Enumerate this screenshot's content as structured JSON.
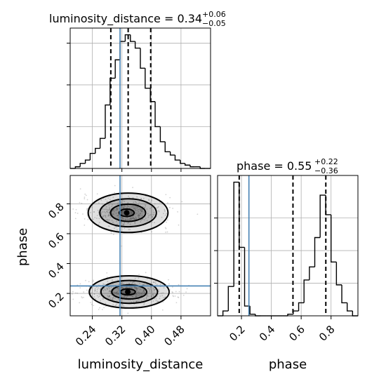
{
  "chart_data": {
    "type": "corner",
    "parameters": [
      "luminosity_distance",
      "phase"
    ],
    "truths": {
      "luminosity_distance": 0.315,
      "phase": 0.25
    },
    "panels": {
      "luminosity_distance_hist": {
        "type": "histogram",
        "title_prefix": "luminosity_distance = 0.34",
        "plus_err": "+0.06",
        "minus_err": "−0.05",
        "quantiles": [
          0.29,
          0.337,
          0.398
        ],
        "xlim": [
          0.18,
          0.56
        ],
        "bin_edges": [
          0.18,
          0.194,
          0.207,
          0.221,
          0.234,
          0.248,
          0.261,
          0.275,
          0.288,
          0.302,
          0.315,
          0.329,
          0.343,
          0.356,
          0.37,
          0.383,
          0.397,
          0.41,
          0.424,
          0.437,
          0.451,
          0.464,
          0.478,
          0.491,
          0.505,
          0.518,
          0.532,
          0.545,
          0.56
        ],
        "counts": [
          0,
          1,
          3,
          5,
          9,
          12,
          18,
          38,
          54,
          65,
          76,
          80,
          76,
          72,
          60,
          48,
          40,
          25,
          16,
          10,
          8,
          5,
          3,
          2,
          1,
          1,
          0,
          0
        ],
        "grid": true
      },
      "phase_hist": {
        "type": "histogram",
        "title_prefix": "phase = 0.55",
        "plus_err": "+0.22",
        "minus_err": "−0.36",
        "quantiles": [
          0.185,
          0.545,
          0.765
        ],
        "xlim": [
          0.04,
          0.98
        ],
        "bin_edges": [
          0.04,
          0.076,
          0.112,
          0.149,
          0.185,
          0.221,
          0.257,
          0.293,
          0.329,
          0.366,
          0.402,
          0.438,
          0.474,
          0.51,
          0.547,
          0.583,
          0.619,
          0.655,
          0.691,
          0.727,
          0.764,
          0.8,
          0.836,
          0.872,
          0.908,
          0.944,
          0.98
        ],
        "counts": [
          0,
          3,
          18,
          82,
          42,
          6,
          1,
          0,
          0,
          0,
          0,
          0,
          0,
          1,
          3,
          8,
          22,
          30,
          48,
          74,
          62,
          33,
          19,
          8,
          3,
          0
        ],
        "xticks": [
          "0.2",
          "0.4",
          "0.6",
          "0.8"
        ],
        "xtick_values": [
          0.2,
          0.4,
          0.6,
          0.8
        ],
        "xlabel": "phase",
        "grid": true
      },
      "joint": {
        "type": "contour_2d",
        "xlim": [
          0.18,
          0.56
        ],
        "ylim": [
          0.05,
          0.99
        ],
        "xticks": [
          "0.24",
          "0.32",
          "0.40",
          "0.48"
        ],
        "xtick_values": [
          0.24,
          0.32,
          0.4,
          0.48
        ],
        "yticks": [
          "0.2",
          "0.4",
          "0.6",
          "0.8"
        ],
        "ytick_values": [
          0.2,
          0.4,
          0.6,
          0.8
        ],
        "xlabel": "luminosity_distance",
        "ylabel": "phase",
        "modes": [
          {
            "center": [
              0.333,
              0.74
            ],
            "sx": 0.045,
            "sy": 0.055,
            "weight": 0.48
          },
          {
            "center": [
              0.336,
              0.21
            ],
            "sx": 0.045,
            "sy": 0.045,
            "weight": 0.52
          }
        ],
        "grid": true
      }
    },
    "colors": {
      "hist": "#000000",
      "quantile": "#000000",
      "truth": "#4682b4",
      "grid": "#b0b0b0",
      "density": "#808080"
    }
  }
}
